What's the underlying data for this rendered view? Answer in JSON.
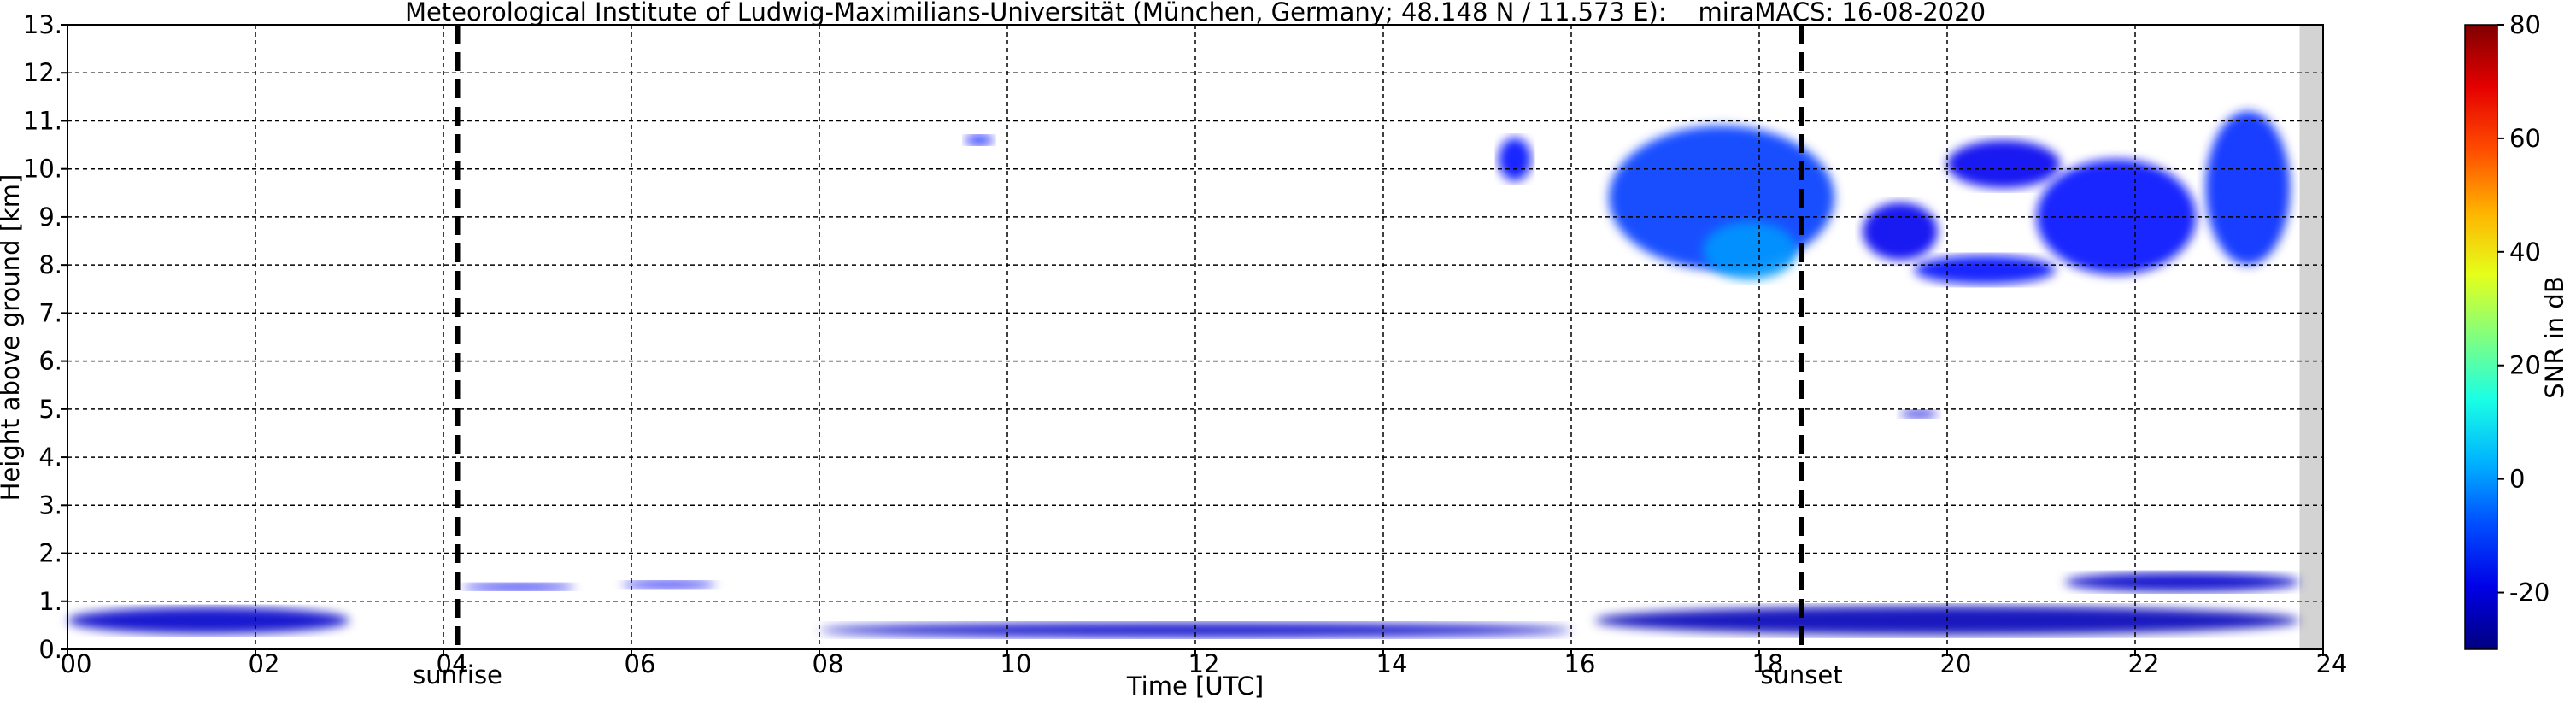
{
  "chart_data": {
    "type": "heatmap",
    "title": "Meteorological Institute of Ludwig-Maximilians-Universität (München, Germany; 48.148 N / 11.573 E):    miraMACS: 16-08-2020",
    "x_label": "Time [UTC]",
    "y_label": "Height above ground [km]",
    "colorbar_label": "SNR in dB",
    "xlim": [
      0,
      24
    ],
    "ylim": [
      0,
      13
    ],
    "clim": [
      -30,
      80
    ],
    "xticks": [
      {
        "value": 0,
        "label": "00"
      },
      {
        "value": 2,
        "label": "02"
      },
      {
        "value": 4,
        "label": "04"
      },
      {
        "value": 6,
        "label": "06"
      },
      {
        "value": 8,
        "label": "08"
      },
      {
        "value": 10,
        "label": "10"
      },
      {
        "value": 12,
        "label": "12"
      },
      {
        "value": 14,
        "label": "14"
      },
      {
        "value": 16,
        "label": "16"
      },
      {
        "value": 18,
        "label": "18"
      },
      {
        "value": 20,
        "label": "20"
      },
      {
        "value": 22,
        "label": "22"
      },
      {
        "value": 24,
        "label": "24"
      }
    ],
    "yticks": [
      {
        "value": 0,
        "label": "0."
      },
      {
        "value": 1,
        "label": "1."
      },
      {
        "value": 2,
        "label": "2."
      },
      {
        "value": 3,
        "label": "3."
      },
      {
        "value": 4,
        "label": "4."
      },
      {
        "value": 5,
        "label": "5."
      },
      {
        "value": 6,
        "label": "6."
      },
      {
        "value": 7,
        "label": "7."
      },
      {
        "value": 8,
        "label": "8."
      },
      {
        "value": 9,
        "label": "9."
      },
      {
        "value": 10,
        "label": "10."
      },
      {
        "value": 11,
        "label": "11."
      },
      {
        "value": 12,
        "label": "12."
      },
      {
        "value": 13,
        "label": "13."
      }
    ],
    "cticks": [
      -20,
      0,
      20,
      40,
      60,
      80
    ],
    "grid": true,
    "no_data_from": 23.75,
    "events": [
      {
        "x": 4.15,
        "label": "sunrise"
      },
      {
        "x": 18.45,
        "label": "sunset"
      }
    ],
    "echoes": {
      "x": [
        1.5,
        4.8,
        6.4,
        9.7,
        15.4,
        17.6,
        17.9,
        19.5,
        20.6,
        20.4,
        21.8,
        23.2,
        19.7,
        20.0,
        22.5,
        12.0
      ],
      "y": [
        0.6,
        1.3,
        1.35,
        10.6,
        10.2,
        9.4,
        8.3,
        8.7,
        10.1,
        7.9,
        9.0,
        9.6,
        4.9,
        0.6,
        1.4,
        0.4
      ],
      "width": [
        3.0,
        1.2,
        1.0,
        0.3,
        0.35,
        2.4,
        1.0,
        0.8,
        1.2,
        1.5,
        1.7,
        0.9,
        0.4,
        7.5,
        2.5,
        8.0
      ],
      "height": [
        0.55,
        0.15,
        0.15,
        0.2,
        0.9,
        3.0,
        1.2,
        1.2,
        1.0,
        0.6,
        2.4,
        3.2,
        0.15,
        0.6,
        0.4,
        0.3
      ],
      "snr": [
        -22,
        -18,
        -18,
        -15,
        -15,
        -10,
        0,
        -18,
        -18,
        -15,
        -15,
        -12,
        -20,
        -24,
        -22,
        -22
      ]
    }
  }
}
